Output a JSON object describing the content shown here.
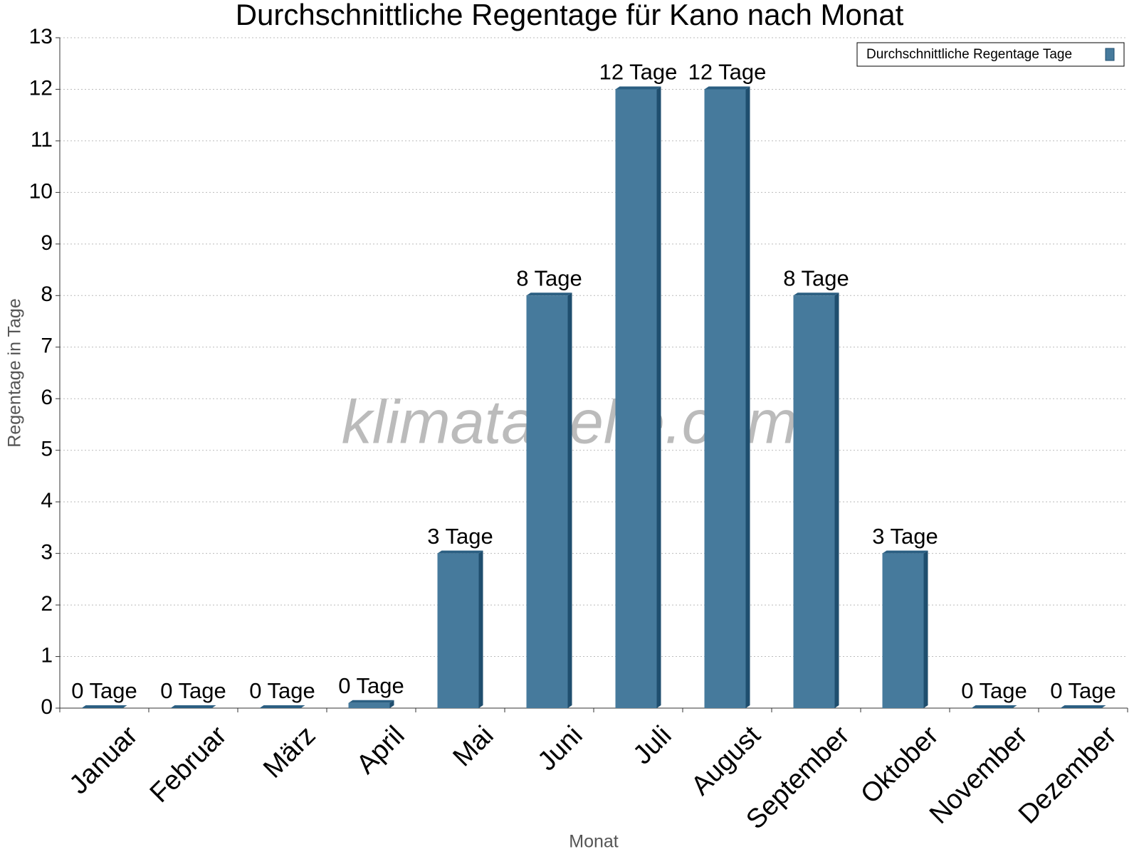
{
  "chart_data": {
    "type": "bar",
    "title": "Durchschnittliche Regentage für Kano nach Monat",
    "x_label": "Monat",
    "y_label": "Regentage in Tage",
    "watermark": "klimatabelle.com",
    "categories": [
      "Januar",
      "Februar",
      "März",
      "April",
      "Mai",
      "Juni",
      "Juli",
      "August",
      "September",
      "Oktober",
      "November",
      "Dezember"
    ],
    "series": [
      {
        "name": "Durchschnittliche Regentage Tage",
        "color": "#467a9c",
        "values": [
          0,
          0,
          0,
          0.1,
          3,
          8,
          12,
          12,
          8,
          3,
          0,
          0
        ],
        "value_labels": [
          "0 Tage",
          "0 Tage",
          "0 Tage",
          "0 Tage",
          "3 Tage",
          "8 Tage",
          "12 Tage",
          "12 Tage",
          "8 Tage",
          "3 Tage",
          "0 Tage",
          "0 Tage"
        ]
      }
    ],
    "ylim": [
      0,
      13
    ],
    "yticks": [
      0,
      1,
      2,
      3,
      4,
      5,
      6,
      7,
      8,
      9,
      10,
      11,
      12,
      13
    ],
    "grid": true,
    "legend": "top-right"
  }
}
